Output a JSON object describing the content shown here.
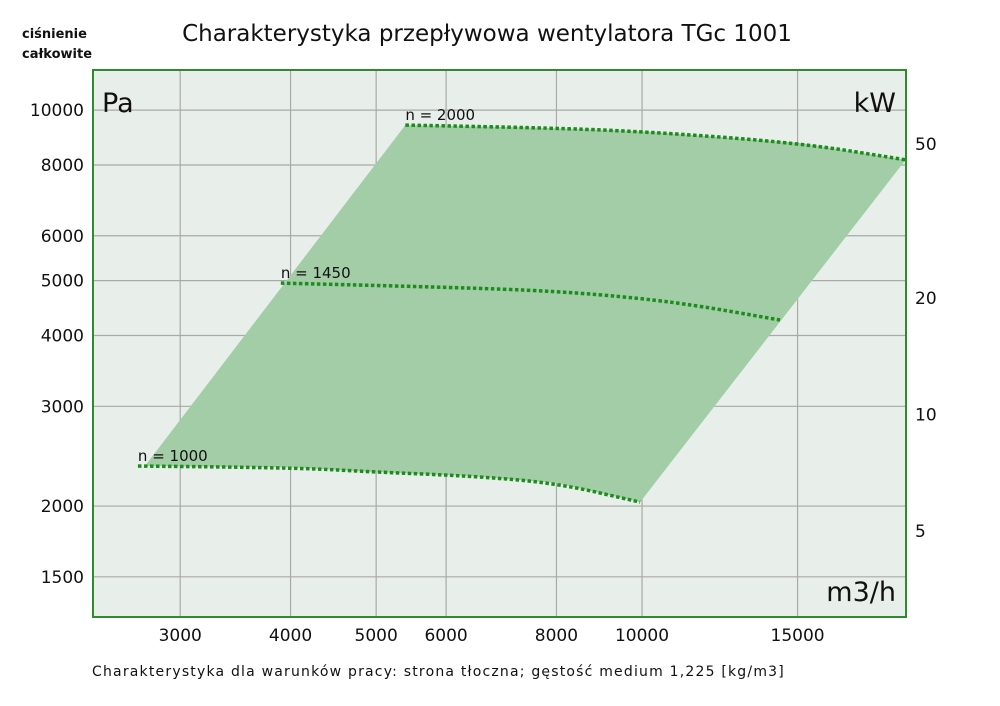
{
  "chart_data": {
    "type": "line",
    "title": "Charakterystyka przepływowa wentylatora TGc 1001",
    "ylabel_left": "ciśnienie całkowite",
    "yunit_left": "Pa",
    "yunit_right": "kW",
    "xunit": "m3/h",
    "footnote": "Charakterystyka dla warunków pracy: strona tłoczna; gęstość medium 1,225 [kg/m3]",
    "x_scale": "log",
    "y_scale": "log",
    "xlim": [
      2390,
      19900
    ],
    "ylim": [
      1274,
      11770
    ],
    "y_right_lim": [
      3.0,
      77.6
    ],
    "grid": true,
    "x_ticks": [
      3000,
      4000,
      5000,
      6000,
      8000,
      10000,
      15000
    ],
    "x_tick_labels": [
      "3000",
      "4000",
      "5000",
      "6000",
      "8000",
      "10000",
      "15000"
    ],
    "y_ticks": [
      1500,
      2000,
      3000,
      4000,
      5000,
      6000,
      8000,
      10000
    ],
    "y_tick_labels": [
      "1500",
      "2000",
      "3000",
      "4000",
      "5000",
      "6000",
      "8000",
      "10000"
    ],
    "y_right_ticks": [
      5,
      10,
      20,
      50
    ],
    "y_right_tick_labels": [
      "5",
      "10",
      "20",
      "50"
    ],
    "series": [
      {
        "name": "n = 2000",
        "x": [
          5395,
          7280,
          9950,
          15100,
          19880
        ],
        "y": [
          9408,
          9330,
          9180,
          8750,
          8170
        ]
      },
      {
        "name": "n = 1450",
        "x": [
          3900,
          6000,
          8000,
          9950,
          11630,
          14330
        ],
        "y": [
          4950,
          4870,
          4790,
          4655,
          4510,
          4260
        ]
      },
      {
        "name": "n = 1000",
        "x": [
          2687,
          4000,
          5000,
          6385,
          8000,
          9950
        ],
        "y": [
          2353,
          2340,
          2296,
          2260,
          2196,
          2032
        ]
      }
    ],
    "colors": {
      "plot_bg": "#e8efea",
      "border": "#2e8b2e",
      "area": "#a2cda6",
      "curve": "#1c8c1c",
      "grid": "#a8aaa8"
    }
  }
}
